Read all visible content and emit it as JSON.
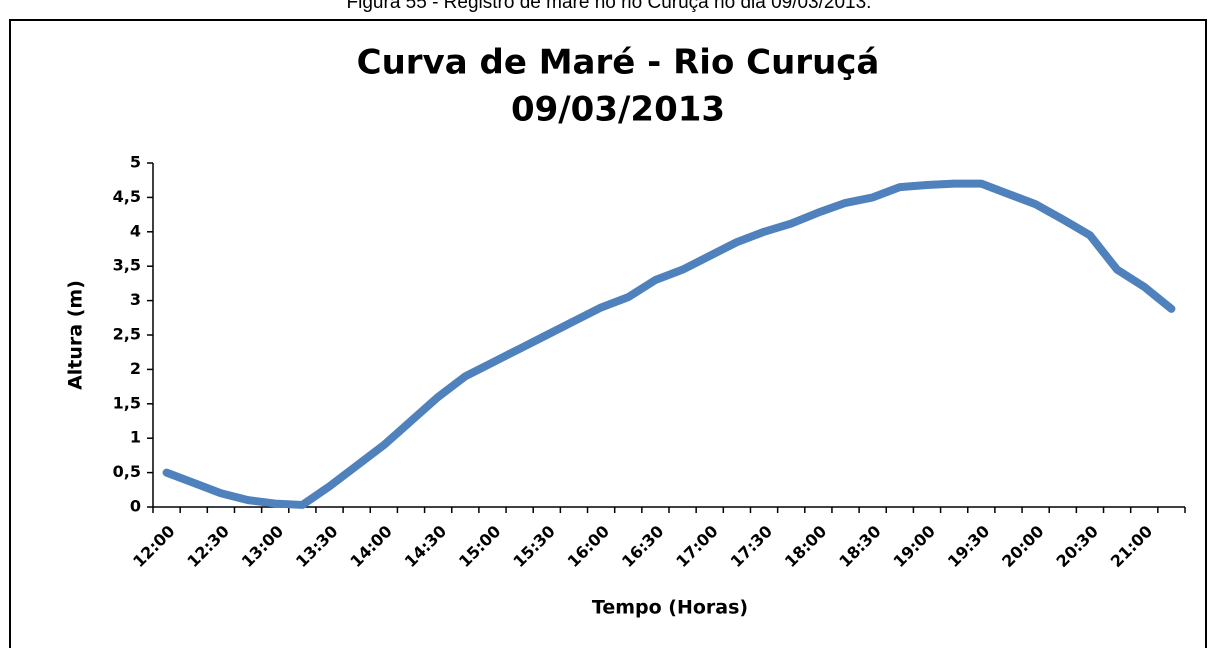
{
  "caption": "Figura 55 - Registro de maré no rio Curuçá no dia 09/03/2013.",
  "chart_data": {
    "type": "line",
    "title": "Curva de Maré - Rio Curuçá",
    "subtitle": "09/03/2013",
    "xlabel": "Tempo (Horas)",
    "ylabel": "Altura (m)",
    "categories": [
      "12:00",
      null,
      "12:30",
      null,
      "13:00",
      null,
      "13:30",
      null,
      "14:00",
      null,
      "14:30",
      null,
      "15:00",
      null,
      "15:30",
      null,
      "16:00",
      null,
      "16:30",
      null,
      "17:00",
      null,
      "17:30",
      null,
      "18:00",
      null,
      "18:30",
      null,
      "19:00",
      null,
      "19:30",
      null,
      "20:00",
      null,
      "20:30",
      null,
      "21:00",
      null
    ],
    "series": [
      {
        "name": "Altura",
        "color": "#4f81bd",
        "values": [
          0.5,
          0.35,
          0.2,
          0.1,
          0.05,
          0.03,
          0.3,
          0.6,
          0.9,
          1.25,
          1.6,
          1.9,
          2.1,
          2.3,
          2.5,
          2.7,
          2.9,
          3.05,
          3.3,
          3.45,
          3.65,
          3.85,
          4.0,
          4.12,
          4.28,
          4.42,
          4.5,
          4.65,
          4.68,
          4.7,
          4.7,
          4.55,
          4.4,
          4.18,
          3.95,
          3.45,
          3.2,
          2.88
        ]
      }
    ],
    "ylim": [
      0,
      5
    ],
    "yticks": [
      0,
      {
        "value": 0.5,
        "label": "0,5"
      },
      1,
      {
        "value": 1.5,
        "label": "1,5"
      },
      2,
      {
        "value": 2.5,
        "label": "2,5"
      },
      3,
      {
        "value": 3.5,
        "label": "3,5"
      },
      4,
      {
        "value": 4.5,
        "label": "4,5"
      },
      5
    ],
    "grid": false
  }
}
